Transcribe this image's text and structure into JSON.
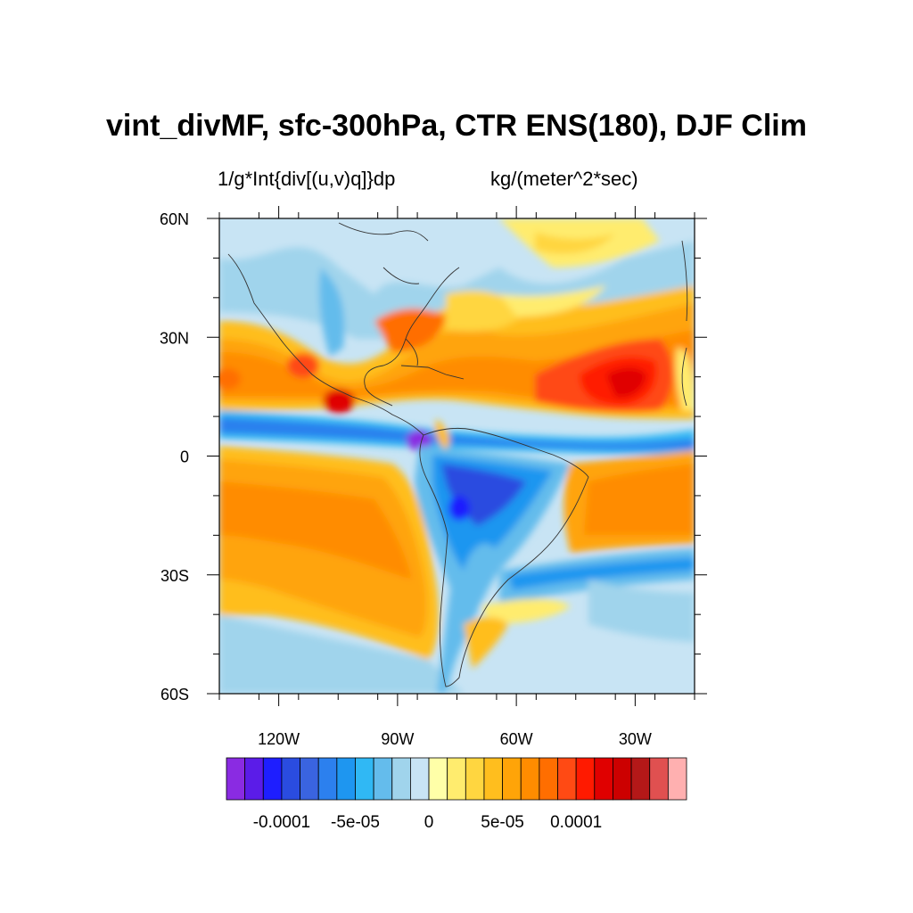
{
  "title": "vint_divMF, sfc-300hPa, CTR ENS(180), DJF Clim",
  "subtitle_left": "1/g*Int{div[(u,v)q]}dp",
  "subtitle_right": "kg/(meter^2*sec)",
  "map": {
    "lon_range": [
      -135,
      -15
    ],
    "lat_range": [
      -60,
      60
    ],
    "lat_ticks": [
      {
        "value": 60,
        "label": "60N"
      },
      {
        "value": 30,
        "label": "30N"
      },
      {
        "value": 0,
        "label": "0"
      },
      {
        "value": -30,
        "label": "30S"
      },
      {
        "value": -60,
        "label": "60S"
      }
    ],
    "lon_ticks": [
      {
        "value": -120,
        "label": "120W"
      },
      {
        "value": -90,
        "label": "90W"
      },
      {
        "value": -60,
        "label": "60W"
      },
      {
        "value": -30,
        "label": "30W"
      }
    ]
  },
  "colorbar": {
    "colors": [
      "#8a2be2",
      "#5b1ce8",
      "#1e1eff",
      "#2a4ce0",
      "#3a64e0",
      "#2c80ee",
      "#1e96f0",
      "#30b8f4",
      "#64bcec",
      "#a0d4ec",
      "#c8e4f4",
      "#ffffa8",
      "#ffec6e",
      "#ffd640",
      "#ffbe1e",
      "#ffa408",
      "#ff8c00",
      "#ff6e00",
      "#ff4a14",
      "#ff1a00",
      "#e00000",
      "#cc0000",
      "#b41818",
      "#e05050",
      "#ffb0b0"
    ],
    "labels": [
      {
        "text": "-0.0001",
        "boundary": 3
      },
      {
        "text": "-5e-05",
        "boundary": 7
      },
      {
        "text": "0",
        "boundary": 11
      },
      {
        "text": "5e-05",
        "boundary": 15
      },
      {
        "text": "0.0001",
        "boundary": 19
      }
    ]
  }
}
